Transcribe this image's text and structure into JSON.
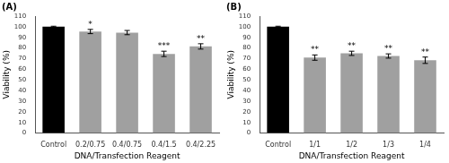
{
  "chart_data": [
    {
      "type": "bar",
      "title": "(A)",
      "categories": [
        "Control",
        "0.2/0.75",
        "0.4/0.75",
        "0.4/1.5",
        "0.4/2.25"
      ],
      "values": [
        100,
        95.5,
        94.5,
        74.5,
        81.5
      ],
      "errors": [
        0.5,
        2.0,
        2.0,
        2.5,
        2.5
      ],
      "colors": [
        "#000000",
        "#a0a0a0",
        "#a0a0a0",
        "#a0a0a0",
        "#a0a0a0"
      ],
      "annotations": [
        null,
        "*",
        null,
        "***",
        "**"
      ],
      "xlabel": "DNA/Transfection Reagent",
      "ylabel": "Viability (%)",
      "ylim": [
        0,
        110
      ],
      "yticks": [
        0,
        10,
        20,
        30,
        40,
        50,
        60,
        70,
        80,
        90,
        100,
        110
      ],
      "grid": false
    },
    {
      "type": "bar",
      "title": "(B)",
      "categories": [
        "Control",
        "1/1",
        "1/2",
        "1/3",
        "1/4"
      ],
      "values": [
        100,
        71,
        75,
        72.5,
        68.5
      ],
      "errors": [
        0.5,
        2.5,
        2.0,
        2.0,
        3.0
      ],
      "colors": [
        "#000000",
        "#a0a0a0",
        "#a0a0a0",
        "#a0a0a0",
        "#a0a0a0"
      ],
      "annotations": [
        null,
        "**",
        "**",
        "**",
        "**"
      ],
      "xlabel": "DNA/Transfection Reagent",
      "ylabel": "Viability (%)",
      "ylim": [
        0,
        110
      ],
      "yticks": [
        0,
        10,
        20,
        30,
        40,
        50,
        60,
        70,
        80,
        90,
        100,
        110
      ],
      "grid": false
    }
  ]
}
